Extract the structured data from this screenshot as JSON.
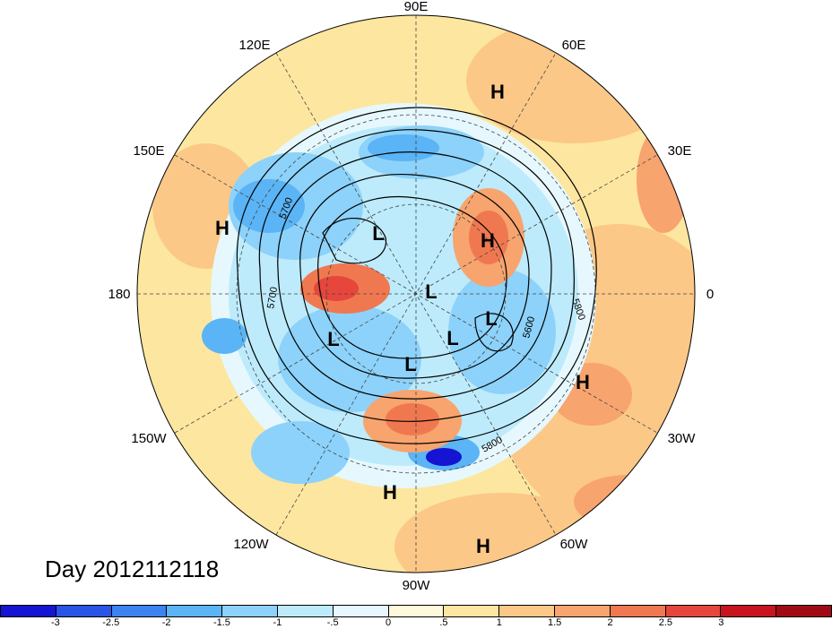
{
  "map": {
    "projection": "north-polar-stereographic",
    "longitude_labels": [
      "90E",
      "60E",
      "30E",
      "0",
      "30W",
      "60W",
      "90W",
      "120W",
      "150W",
      "180",
      "150E",
      "120E"
    ],
    "highs": [
      "H",
      "H",
      "H",
      "H",
      "H",
      "H"
    ],
    "lows": [
      "L",
      "L",
      "L",
      "L",
      "L",
      "L",
      "L"
    ],
    "contour_labels": [
      "5700",
      "5700",
      "5800",
      "5600",
      "5800"
    ]
  },
  "timestamp": "Day 2012112118",
  "colorbar": {
    "colors": [
      "#1414d2",
      "#2855e6",
      "#3c82f0",
      "#5ab4f5",
      "#8cd2fa",
      "#bdebfc",
      "#e6f8fe",
      "#fff9dc",
      "#fde6a0",
      "#fbc887",
      "#f7a46e",
      "#f07850",
      "#e6463c",
      "#c8141e",
      "#a00a14"
    ],
    "tick_labels": [
      "-3",
      "-2.5",
      "-2",
      "-1.5",
      "-1",
      "-.5",
      "0",
      ".5",
      "1",
      "1.5",
      "2",
      "2.5",
      "3"
    ]
  }
}
